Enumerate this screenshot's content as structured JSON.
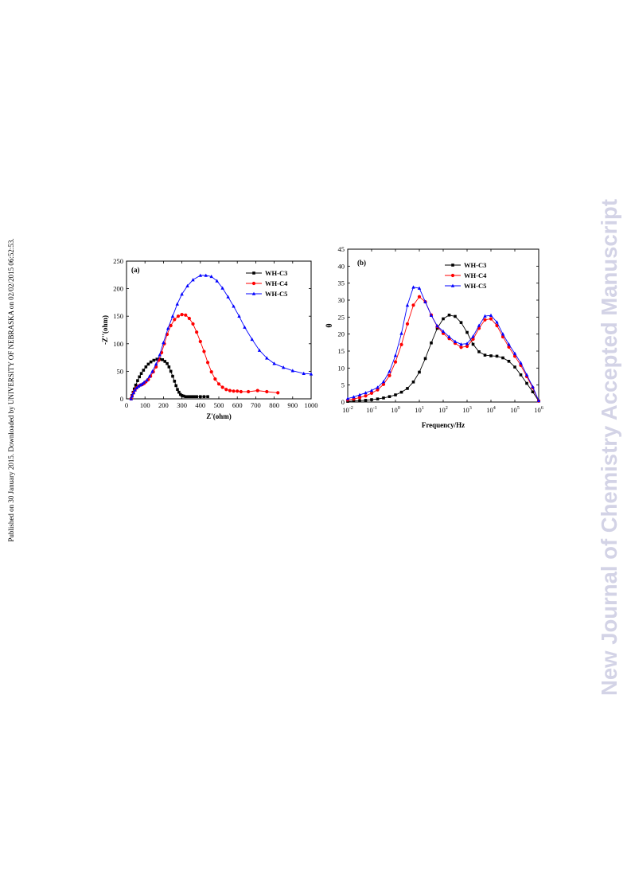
{
  "sidebar_text": "Published on 30 January 2015. Downloaded by UNIVERSITY OF NEBRASKA on 02/02/2015 06:52:53.",
  "watermark": "New Journal of Chemistry Accepted Manuscript",
  "chart_data": [
    {
      "type": "line",
      "panel_label": "(a)",
      "xlabel": "Z'(ohm)",
      "ylabel": "-Z''(ohm)",
      "xlim": [
        0,
        1000
      ],
      "ylim": [
        0,
        250
      ],
      "xticks": [
        0,
        100,
        200,
        300,
        400,
        500,
        600,
        700,
        800,
        900,
        1000
      ],
      "yticks": [
        0,
        50,
        100,
        150,
        200,
        250
      ],
      "legend_position": "top-right",
      "series": [
        {
          "name": "WH-C3",
          "color": "#000000",
          "marker": "square",
          "x": [
            25,
            30,
            36,
            42,
            50,
            60,
            70,
            80,
            92,
            105,
            118,
            132,
            148,
            165,
            180,
            195,
            208,
            220,
            230,
            240,
            250,
            260,
            268,
            276,
            284,
            292,
            300,
            310,
            320,
            335,
            350,
            365,
            380,
            400,
            420,
            440
          ],
          "y": [
            0,
            6,
            12,
            18,
            25,
            33,
            40,
            46,
            52,
            58,
            63,
            67,
            70,
            72,
            72,
            71,
            68,
            64,
            58,
            50,
            41,
            32,
            24,
            17,
            12,
            8,
            6,
            5,
            4,
            4,
            4,
            4,
            4,
            4,
            4,
            4
          ]
        },
        {
          "name": "WH-C4",
          "color": "#ff0000",
          "marker": "circle",
          "x": [
            25,
            30,
            38,
            46,
            55,
            65,
            75,
            85,
            95,
            105,
            118,
            130,
            145,
            160,
            175,
            190,
            205,
            220,
            240,
            260,
            280,
            300,
            320,
            340,
            360,
            380,
            400,
            420,
            440,
            460,
            480,
            500,
            520,
            540,
            560,
            580,
            600,
            620,
            660,
            710,
            760,
            820
          ],
          "y": [
            0,
            5,
            11,
            16,
            20,
            23,
            25,
            26,
            28,
            31,
            35,
            41,
            49,
            58,
            70,
            84,
            100,
            117,
            133,
            144,
            150,
            153,
            152,
            146,
            136,
            121,
            104,
            86,
            66,
            49,
            36,
            27,
            21,
            17,
            15,
            14,
            14,
            13,
            13,
            15,
            13,
            11
          ]
        },
        {
          "name": "WH-C5",
          "color": "#0000ff",
          "marker": "triangle",
          "x": [
            25,
            30,
            38,
            46,
            55,
            65,
            75,
            85,
            95,
            110,
            125,
            140,
            160,
            180,
            200,
            225,
            250,
            275,
            300,
            330,
            360,
            400,
            430,
            460,
            490,
            520,
            550,
            580,
            610,
            640,
            680,
            720,
            760,
            800,
            850,
            900,
            960,
            1000
          ],
          "y": [
            0,
            5,
            11,
            16,
            20,
            23,
            25,
            27,
            30,
            34,
            41,
            50,
            63,
            80,
            102,
            128,
            150,
            172,
            190,
            205,
            216,
            224,
            224,
            222,
            214,
            201,
            185,
            168,
            150,
            130,
            108,
            88,
            74,
            64,
            57,
            51,
            46,
            45
          ]
        }
      ]
    },
    {
      "type": "line",
      "panel_label": "(b)",
      "xlabel": "Frequency/Hz",
      "ylabel": "θ",
      "x_scale": "log",
      "xlim": [
        0.01,
        1000000
      ],
      "ylim": [
        0,
        45
      ],
      "xticks": [
        "10^-2",
        "10^-1",
        "10^0",
        "10^1",
        "10^2",
        "10^3",
        "10^4",
        "10^5",
        "10^6"
      ],
      "yticks": [
        0,
        5,
        10,
        15,
        20,
        25,
        30,
        35,
        40,
        45
      ],
      "legend_position": "top-center",
      "series": [
        {
          "name": "WH-C3",
          "color": "#000000",
          "marker": "square",
          "x": [
            0.01,
            0.0178,
            0.0316,
            0.0562,
            0.1,
            0.178,
            0.316,
            0.562,
            1,
            1.78,
            3.16,
            5.62,
            10,
            17.8,
            31.6,
            56.2,
            100,
            178,
            316,
            562,
            1000,
            1780,
            3160,
            5620,
            10000,
            17800,
            31600,
            56200,
            100000,
            178000,
            316000,
            562000,
            1000000
          ],
          "y": [
            0.2,
            0.3,
            0.4,
            0.5,
            0.7,
            0.9,
            1.2,
            1.6,
            2.1,
            2.9,
            4,
            5.9,
            8.8,
            12.8,
            17.4,
            21.7,
            24.5,
            25.6,
            25.2,
            23.4,
            20.5,
            17,
            14.8,
            13.8,
            13.6,
            13.5,
            13,
            12,
            10.3,
            8,
            5.5,
            3,
            0.3
          ]
        },
        {
          "name": "WH-C4",
          "color": "#ff0000",
          "marker": "circle",
          "x": [
            0.01,
            0.0178,
            0.0316,
            0.0562,
            0.1,
            0.178,
            0.316,
            0.562,
            1,
            1.78,
            3.16,
            5.62,
            10,
            17.8,
            31.6,
            56.2,
            100,
            178,
            316,
            562,
            1000,
            1780,
            3160,
            5620,
            10000,
            17800,
            31600,
            56200,
            100000,
            178000,
            316000,
            562000,
            1000000
          ],
          "y": [
            0.6,
            0.9,
            1.3,
            1.8,
            2.6,
            3.6,
            5.2,
            7.8,
            11.8,
            16.9,
            23,
            28.5,
            31,
            29.5,
            25.6,
            22.2,
            20.2,
            18.7,
            17.3,
            16.1,
            16.4,
            18.5,
            21.7,
            24.2,
            24.5,
            22.5,
            19.2,
            16.2,
            13.5,
            10.8,
            7.5,
            4.2,
            0.3
          ]
        },
        {
          "name": "WH-C5",
          "color": "#0000ff",
          "marker": "triangle",
          "x": [
            0.01,
            0.0178,
            0.0316,
            0.0562,
            0.1,
            0.178,
            0.316,
            0.562,
            1,
            1.78,
            3.16,
            5.62,
            10,
            17.8,
            31.6,
            56.2,
            100,
            178,
            316,
            562,
            1000,
            1780,
            3160,
            5620,
            10000,
            17800,
            31600,
            56200,
            100000,
            178000,
            316000,
            562000,
            1000000
          ],
          "y": [
            1,
            1.5,
            2.1,
            2.7,
            3.4,
            4.3,
            6,
            9,
            13.7,
            20.2,
            28.5,
            33.8,
            33.5,
            29.5,
            25.5,
            22.4,
            20.8,
            19.2,
            17.8,
            17,
            17.2,
            19.3,
            22.5,
            25.3,
            25.5,
            23.5,
            20,
            17,
            14.3,
            11.5,
            8,
            4.5,
            0.4
          ]
        }
      ]
    }
  ]
}
